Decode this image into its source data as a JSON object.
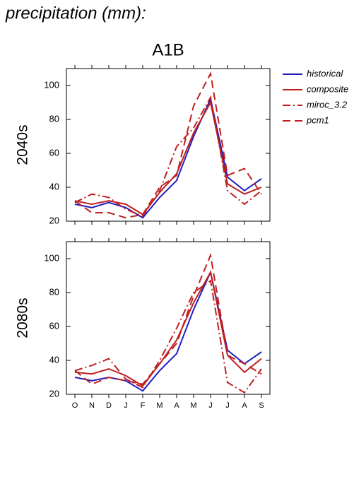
{
  "page_title": "precipitation (mm):",
  "scenario": "A1B",
  "chart_data": [
    {
      "type": "line",
      "ylabel": "2040s",
      "legend": "right",
      "categories": [
        "O",
        "N",
        "D",
        "J",
        "F",
        "M",
        "A",
        "M",
        "J",
        "J",
        "A",
        "S"
      ],
      "ylim": [
        20,
        110
      ],
      "yticks": [
        20,
        40,
        60,
        80,
        100
      ],
      "series": [
        {
          "name": "historical",
          "color": "#1f1fbf",
          "dash": "solid",
          "values": [
            30,
            28,
            31,
            28,
            22,
            34,
            44,
            70,
            92,
            46,
            38,
            45
          ]
        },
        {
          "name": "composite",
          "color": "#bf1f1f",
          "dash": "solid",
          "values": [
            32,
            30,
            32,
            30,
            24,
            37,
            48,
            72,
            90,
            42,
            36,
            40
          ]
        },
        {
          "name": "miroc_3.2",
          "color": "#bf1f1f",
          "dash": "dashdot",
          "values": [
            31,
            36,
            34,
            27,
            23,
            38,
            64,
            75,
            93,
            38,
            30,
            38
          ]
        },
        {
          "name": "pcm1",
          "color": "#bf1f1f",
          "dash": "dash",
          "values": [
            32,
            25,
            25,
            22,
            24,
            40,
            47,
            88,
            107,
            47,
            51,
            36
          ]
        }
      ]
    },
    {
      "type": "line",
      "ylabel": "2080s",
      "categories": [
        "O",
        "N",
        "D",
        "J",
        "F",
        "M",
        "A",
        "M",
        "J",
        "J",
        "A",
        "S"
      ],
      "ylim": [
        20,
        110
      ],
      "yticks": [
        20,
        40,
        60,
        80,
        100
      ],
      "series": [
        {
          "color": "#1f1fbf",
          "dash": "solid",
          "values": [
            30,
            28,
            30,
            28,
            22,
            34,
            44,
            70,
            92,
            46,
            38,
            45
          ]
        },
        {
          "color": "#bf1f1f",
          "dash": "solid",
          "values": [
            33,
            32,
            35,
            31,
            25,
            38,
            52,
            74,
            92,
            43,
            33,
            41
          ]
        },
        {
          "color": "#bf1f1f",
          "dash": "dashdot",
          "values": [
            34,
            37,
            41,
            29,
            24,
            40,
            59,
            80,
            87,
            27,
            21,
            35
          ]
        },
        {
          "color": "#bf1f1f",
          "dash": "dash",
          "values": [
            34,
            26,
            30,
            28,
            26,
            38,
            50,
            78,
            102,
            43,
            38,
            32
          ]
        }
      ]
    }
  ]
}
